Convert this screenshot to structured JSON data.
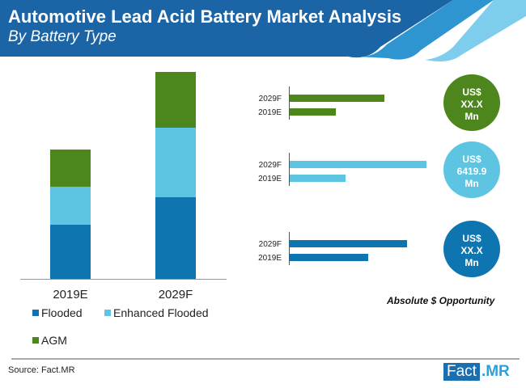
{
  "header": {
    "title": "Automotive Lead Acid Battery Market Analysis",
    "subtitle": "By Battery Type"
  },
  "colors": {
    "header": "#1b64a6",
    "flooded": "#0f75b0",
    "enhanced_flooded": "#5dc5e2",
    "agm": "#4e861e"
  },
  "chart_data": [
    {
      "type": "bar",
      "stacked": true,
      "categories": [
        "2019E",
        "2029F"
      ],
      "series": [
        {
          "name": "Flooded",
          "values": [
            67,
            101
          ]
        },
        {
          "name": "Enhanced Flooded",
          "values": [
            47,
            86
          ]
        },
        {
          "name": "AGM",
          "values": [
            46,
            69
          ]
        }
      ],
      "legend": "bottom",
      "grid": false
    },
    {
      "type": "bar",
      "orientation": "horizontal",
      "title": "Absolute $ Opportunity",
      "groups": [
        {
          "segment": "AGM",
          "categories": [
            "2029F",
            "2019E"
          ],
          "values": [
            117,
            57
          ],
          "opportunity": [
            "US$",
            "XX.X",
            "Mn"
          ]
        },
        {
          "segment": "Enhanced Flooded",
          "categories": [
            "2029F",
            "2019E"
          ],
          "values": [
            169,
            69
          ],
          "opportunity": [
            "US$",
            "6419.9",
            "Mn"
          ]
        },
        {
          "segment": "Flooded",
          "categories": [
            "2029F",
            "2019E"
          ],
          "values": [
            145,
            97
          ],
          "opportunity": [
            "US$",
            "XX.X",
            "Mn"
          ]
        }
      ]
    }
  ],
  "legend": [
    "Flooded",
    "Enhanced Flooded",
    "AGM"
  ],
  "footer": {
    "source": "Source: Fact.MR",
    "logo_a": "Fact",
    "logo_b": ".MR"
  }
}
